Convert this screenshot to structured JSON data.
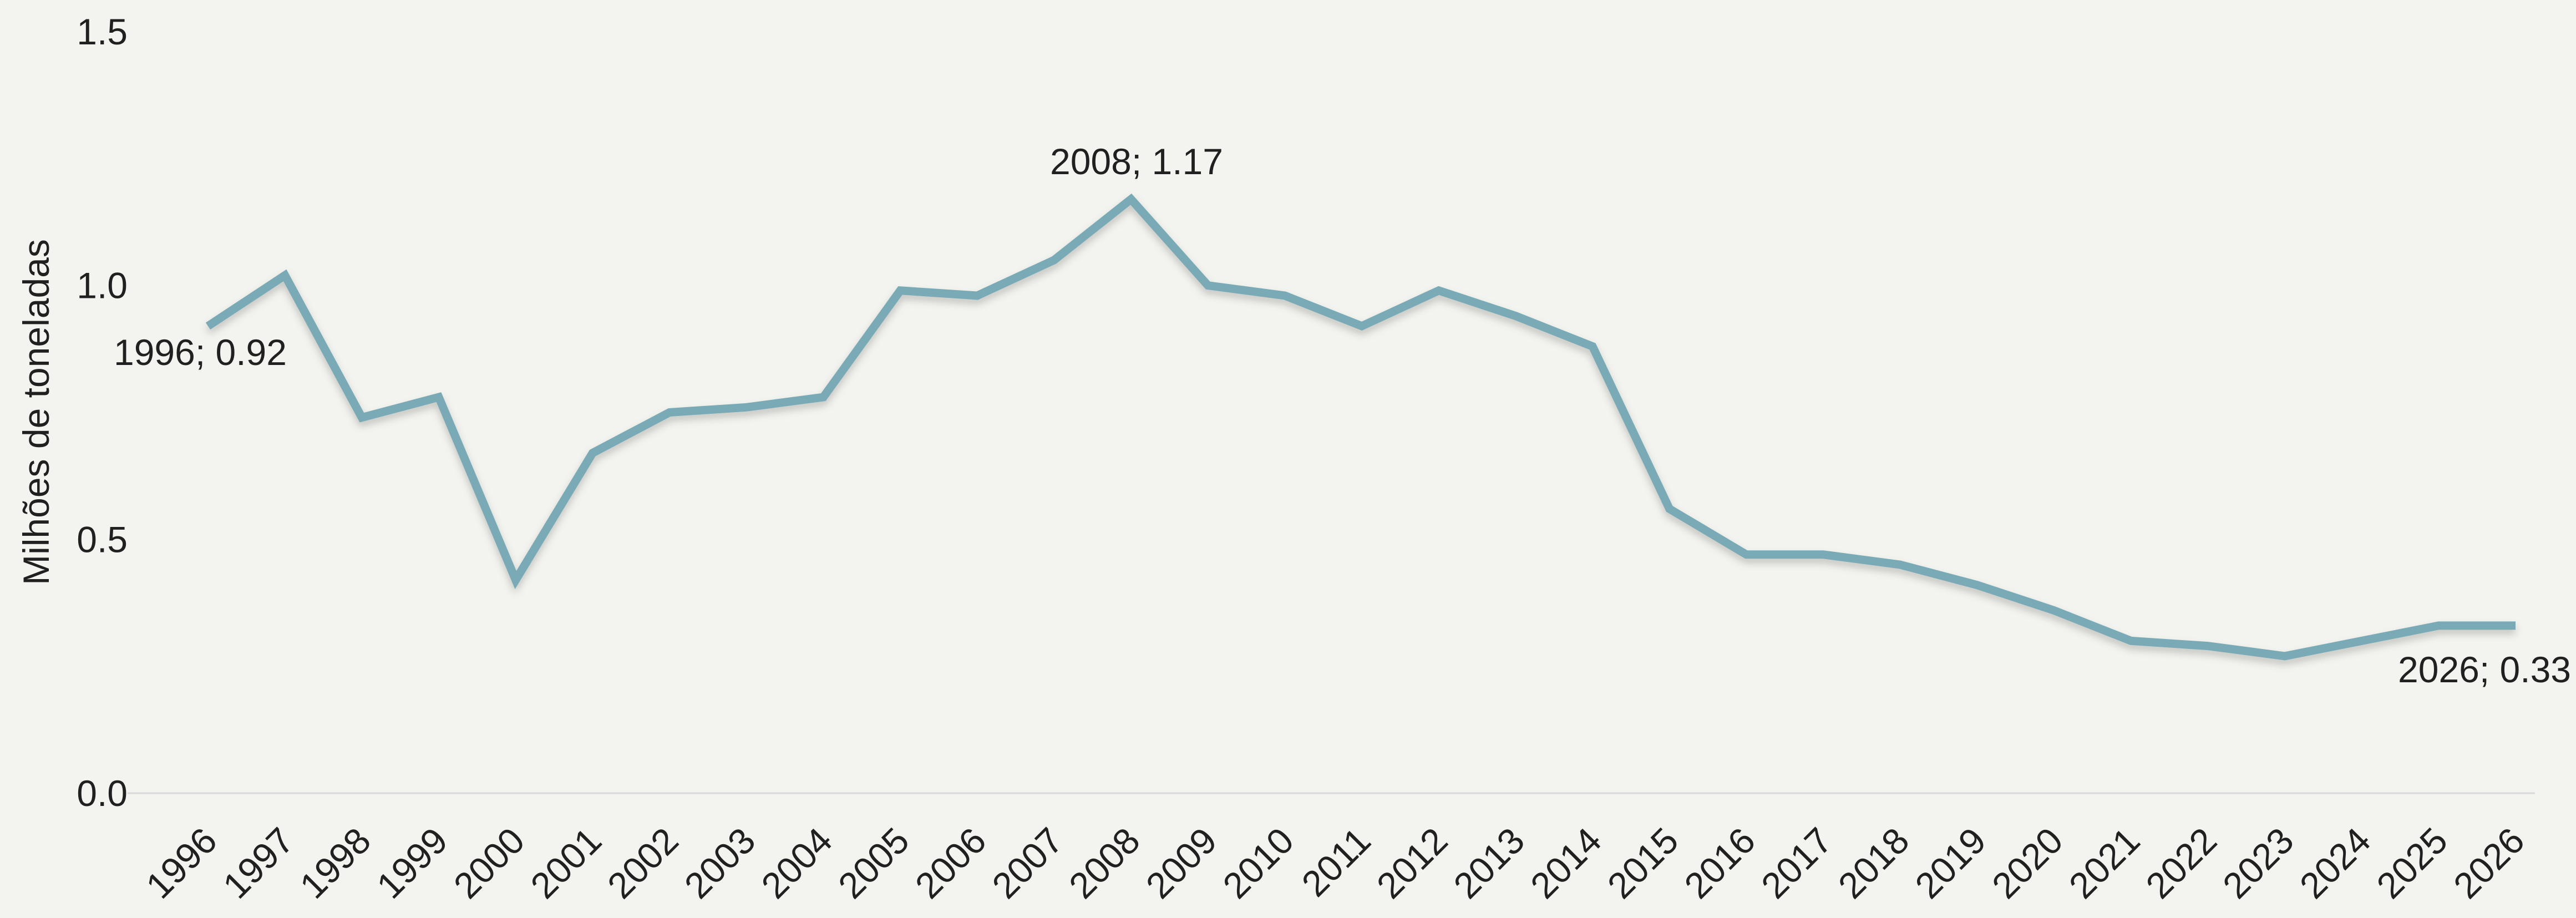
{
  "chart_data": {
    "type": "line",
    "title": "",
    "xlabel": "",
    "ylabel": "Milhões de toneladas",
    "categories": [
      "1996",
      "1997",
      "1998",
      "1999",
      "2000",
      "2001",
      "2002",
      "2003",
      "2004",
      "2005",
      "2006",
      "2007",
      "2008",
      "2009",
      "2010",
      "2011",
      "2012",
      "2013",
      "2014",
      "2015",
      "2016",
      "2017",
      "2018",
      "2019",
      "2020",
      "2021",
      "2022",
      "2023",
      "2024",
      "2025",
      "2026"
    ],
    "series": [
      {
        "values": [
          0.92,
          1.02,
          0.74,
          0.78,
          0.42,
          0.67,
          0.75,
          0.76,
          0.78,
          0.99,
          0.98,
          1.05,
          1.17,
          1.0,
          0.98,
          0.92,
          0.99,
          0.94,
          0.88,
          0.56,
          0.47,
          0.47,
          0.45,
          0.41,
          0.36,
          0.3,
          0.29,
          0.27,
          0.3,
          0.33,
          0.33
        ],
        "color": "#7aaab6"
      }
    ],
    "ylim": [
      0,
      1.5
    ],
    "y_ticks": [
      "0.0",
      "0.5",
      "1.0",
      "1.5"
    ],
    "data_labels": [
      {
        "index": 0,
        "text": "1996; 0.92",
        "placement": "below-right"
      },
      {
        "index": 12,
        "text": "2008; 1.17",
        "placement": "above"
      },
      {
        "index": 30,
        "text": "2026; 0.33",
        "placement": "below-left"
      }
    ],
    "grid": false,
    "legend": "none",
    "colors": {
      "background": "#f3f4ef",
      "line": "#7aaab6",
      "baseline": "#d9d9d9",
      "text": "#202020"
    }
  }
}
